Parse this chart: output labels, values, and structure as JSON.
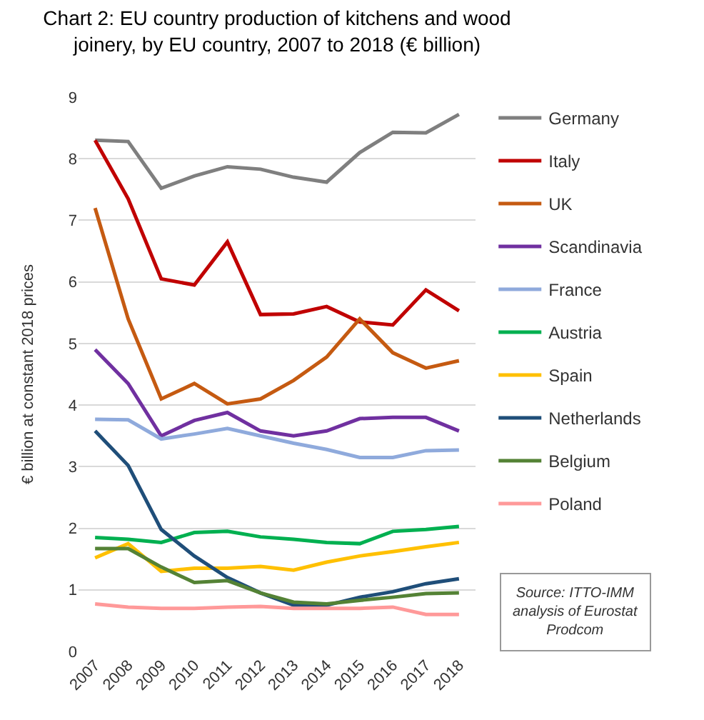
{
  "chart_data": {
    "type": "line",
    "title": "Chart 2: EU country production of kitchens and wood joinery, by EU country, 2007 to 2018 (€ billion)",
    "ylabel": "€ billion at constant 2018 prices",
    "categories": [
      "2007",
      "2008",
      "2009",
      "2010",
      "2011",
      "2012",
      "2013",
      "2014",
      "2015",
      "2016",
      "2017",
      "2018"
    ],
    "series": [
      {
        "name": "Germany",
        "color": "#7f7f7f",
        "values": [
          8.3,
          8.28,
          7.52,
          7.72,
          7.87,
          7.83,
          7.7,
          7.62,
          8.1,
          8.43,
          8.42,
          8.72
        ]
      },
      {
        "name": "Italy",
        "color": "#c00000",
        "values": [
          8.3,
          7.35,
          6.05,
          5.95,
          6.65,
          5.47,
          5.48,
          5.6,
          5.35,
          5.3,
          5.87,
          5.53
        ]
      },
      {
        "name": "UK",
        "color": "#c55a11",
        "values": [
          7.2,
          5.4,
          4.1,
          4.35,
          4.02,
          4.1,
          4.4,
          4.78,
          5.4,
          4.85,
          4.6,
          4.72
        ]
      },
      {
        "name": "Scandinavia",
        "color": "#7030a0",
        "values": [
          4.9,
          4.35,
          3.5,
          3.75,
          3.88,
          3.58,
          3.5,
          3.58,
          3.78,
          3.8,
          3.8,
          3.58
        ]
      },
      {
        "name": "France",
        "color": "#8faadc",
        "values": [
          3.77,
          3.76,
          3.45,
          3.53,
          3.62,
          3.5,
          3.38,
          3.28,
          3.15,
          3.15,
          3.26,
          3.27
        ]
      },
      {
        "name": "Austria",
        "color": "#00b050",
        "values": [
          1.85,
          1.82,
          1.77,
          1.93,
          1.95,
          1.86,
          1.82,
          1.77,
          1.75,
          1.95,
          1.98,
          2.03
        ]
      },
      {
        "name": "Spain",
        "color": "#ffc000",
        "values": [
          1.52,
          1.75,
          1.3,
          1.35,
          1.35,
          1.38,
          1.32,
          1.45,
          1.55,
          1.62,
          1.7,
          1.77
        ]
      },
      {
        "name": "Netherlands",
        "color": "#1f4e79",
        "values": [
          3.58,
          3.02,
          1.98,
          1.55,
          1.2,
          0.95,
          0.75,
          0.75,
          0.88,
          0.97,
          1.1,
          1.18
        ]
      },
      {
        "name": "Belgium",
        "color": "#548235",
        "values": [
          1.67,
          1.67,
          1.37,
          1.12,
          1.15,
          0.95,
          0.8,
          0.77,
          0.83,
          0.88,
          0.94,
          0.95
        ]
      },
      {
        "name": "Poland",
        "color": "#ff9999",
        "values": [
          0.77,
          0.72,
          0.7,
          0.7,
          0.72,
          0.73,
          0.7,
          0.7,
          0.7,
          0.72,
          0.6,
          0.6
        ]
      }
    ],
    "ylim": [
      0,
      9
    ],
    "yticks": [
      0,
      1,
      2,
      3,
      4,
      5,
      6,
      7,
      8,
      9
    ],
    "grid": "y",
    "legend": "right",
    "marker": "none",
    "line_style": "solid",
    "annotations": [
      "Source: ITTO-IMM analysis of Eurostat Prodcom"
    ]
  }
}
